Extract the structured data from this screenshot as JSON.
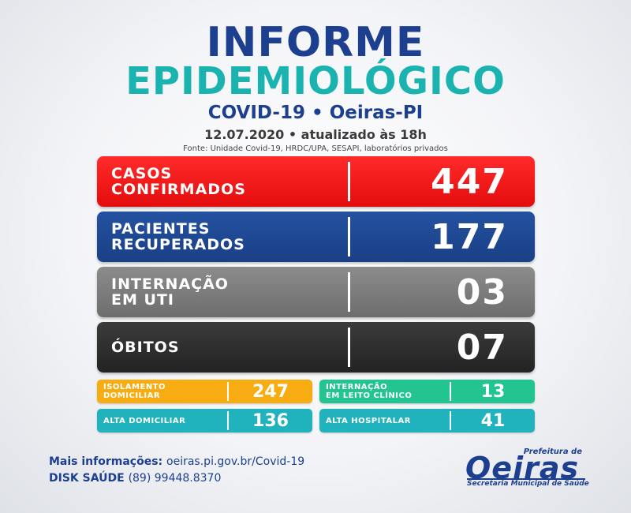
{
  "header": {
    "title_line1": "INFORME",
    "title_line2": "EPIDEMIOLÓGICO",
    "subtitle": "COVID-19 • Oeiras-PI",
    "date": "12.07.2020 • atualizado às 18h",
    "source": "Fonte: Unidade Covid-19, HRDC/UPA, SESAPI, laboratórios privados"
  },
  "main_stats": [
    {
      "label": "CASOS\nCONFIRMADOS",
      "value": "447",
      "color": "#ff1a1a"
    },
    {
      "label": "PACIENTES\nRECUPERADOS",
      "value": "177",
      "color": "#1d4592"
    },
    {
      "label": "INTERNAÇÃO\nEM UTI",
      "value": "03",
      "color": "#7d7d7d"
    },
    {
      "label": "ÓBITOS",
      "value": "07",
      "color": "#2d2d2d"
    }
  ],
  "sub_stats": [
    {
      "label": "ISOLAMENTO\nDOMICILIAR",
      "value": "247",
      "color": "#f7ad11"
    },
    {
      "label": "INTERNAÇÃO\nEM LEITO CLÍNICO",
      "value": "13",
      "color": "#22c490"
    },
    {
      "label": "ALTA DOMICILIAR",
      "value": "136",
      "color": "#20b3bd"
    },
    {
      "label": "ALTA HOSPITALAR",
      "value": "41",
      "color": "#20b3bd"
    }
  ],
  "footer": {
    "info_label": "Mais informações:",
    "info_value": "oeiras.pi.gov.br/Covid-19",
    "disk_label": "DISK SAÚDE",
    "disk_value": "(89) 99448.8370"
  },
  "logo": {
    "prefix": "Prefeitura de",
    "name": "Oeiras",
    "secretaria": "Secretaria Municipal de Saúde"
  }
}
